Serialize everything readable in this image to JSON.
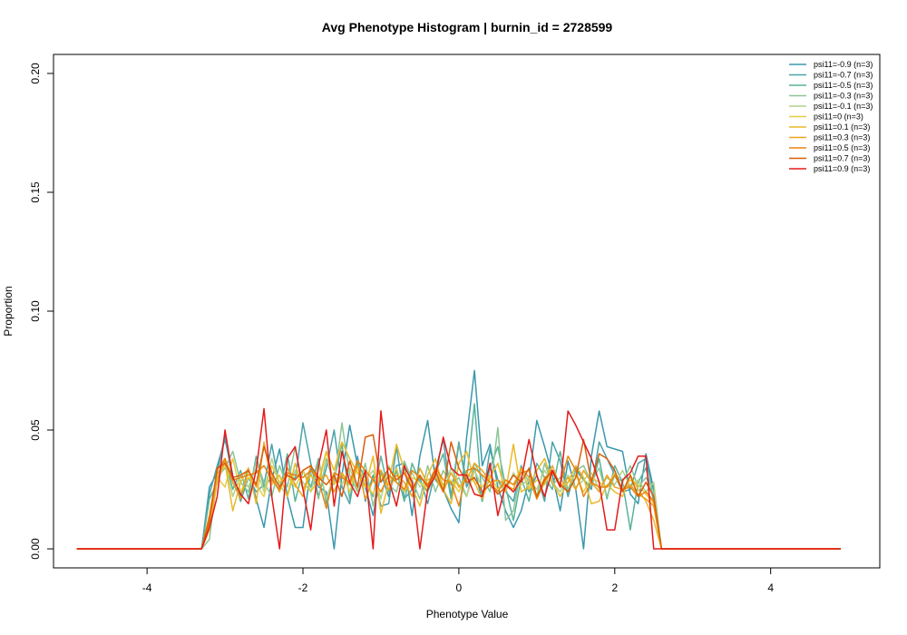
{
  "chart_data": {
    "type": "line",
    "title": "Avg Phenotype Histogram | burnin_id = 2728599",
    "xlabel": "Phenotype Value",
    "ylabel": "Proportion",
    "xlim": [
      -5.2,
      5.4
    ],
    "ylim": [
      -0.008,
      0.208
    ],
    "xticks": [
      -4,
      -2,
      0,
      2,
      4
    ],
    "yticks": [
      0.0,
      0.05,
      0.1,
      0.15,
      0.2
    ],
    "ytick_labels": [
      "0.00",
      "0.05",
      "0.10",
      "0.15",
      "0.20"
    ],
    "grid": false,
    "legend_position": "top-right",
    "x": [
      -4.9,
      -4.8,
      -4.7,
      -4.6,
      -4.5,
      -4.4,
      -4.3,
      -4.2,
      -4.1,
      -4.0,
      -3.9,
      -3.8,
      -3.7,
      -3.6,
      -3.5,
      -3.4,
      -3.3,
      -3.2,
      -3.1,
      -3.0,
      -2.9,
      -2.8,
      -2.7,
      -2.6,
      -2.5,
      -2.4,
      -2.3,
      -2.2,
      -2.1,
      -2.0,
      -1.9,
      -1.8,
      -1.7,
      -1.6,
      -1.5,
      -1.4,
      -1.3,
      -1.2,
      -1.1,
      -1.0,
      -0.9,
      -0.8,
      -0.7,
      -0.6,
      -0.5,
      -0.4,
      -0.3,
      -0.2,
      -0.1,
      0.0,
      0.1,
      0.2,
      0.3,
      0.4,
      0.5,
      0.6,
      0.7,
      0.8,
      0.9,
      1.0,
      1.1,
      1.2,
      1.3,
      1.4,
      1.5,
      1.6,
      1.7,
      1.8,
      1.9,
      2.0,
      2.1,
      2.2,
      2.3,
      2.4,
      2.5,
      2.6,
      2.7,
      2.8,
      2.9,
      3.0,
      3.1,
      3.2,
      3.3,
      3.4,
      3.5,
      3.6,
      3.7,
      3.8,
      3.9,
      4.0,
      4.1,
      4.2,
      4.3,
      4.4,
      4.5,
      4.6,
      4.7,
      4.8,
      4.9
    ],
    "series": [
      {
        "name": "psi11=-0.9 (n=3)",
        "color": "#3a98ad",
        "values": [
          0,
          0,
          0,
          0,
          0,
          0,
          0,
          0,
          0,
          0,
          0,
          0,
          0,
          0,
          0,
          0,
          0,
          0.026,
          0.032,
          0.048,
          0.028,
          0.022,
          0.034,
          0.021,
          0.009,
          0.029,
          0.042,
          0.022,
          0.009,
          0.009,
          0.034,
          0.026,
          0.024,
          0,
          0.031,
          0.052,
          0.035,
          0.026,
          0.014,
          0.032,
          0.022,
          0.035,
          0.036,
          0.014,
          0.039,
          0.054,
          0.029,
          0.025,
          0.017,
          0.011,
          0.047,
          0.075,
          0.035,
          0.044,
          0.026,
          0.016,
          0.009,
          0.016,
          0.029,
          0.054,
          0.043,
          0.031,
          0.016,
          0.037,
          0.025,
          0,
          0.039,
          0.058,
          0.043,
          0.042,
          0.041,
          0.023,
          0.019,
          0.04,
          0.025,
          0,
          0,
          0,
          0,
          0,
          0,
          0,
          0,
          0,
          0,
          0,
          0,
          0,
          0,
          0,
          0,
          0,
          0,
          0,
          0,
          0,
          0,
          0,
          0
        ]
      },
      {
        "name": "psi11=-0.7 (n=3)",
        "color": "#4aa2a8",
        "values": [
          0,
          0,
          0,
          0,
          0,
          0,
          0,
          0,
          0,
          0,
          0,
          0,
          0,
          0,
          0,
          0,
          0,
          0.023,
          0.035,
          0.046,
          0.031,
          0.02,
          0.03,
          0.024,
          0.027,
          0.044,
          0.026,
          0.034,
          0.029,
          0.053,
          0.036,
          0.022,
          0.034,
          0.05,
          0.026,
          0.019,
          0.039,
          0.02,
          0.031,
          0.018,
          0.019,
          0.043,
          0.021,
          0.025,
          0.03,
          0.019,
          0.033,
          0.046,
          0.022,
          0.045,
          0.026,
          0.034,
          0.02,
          0.042,
          0.029,
          0.024,
          0.02,
          0.035,
          0.024,
          0.031,
          0.02,
          0.045,
          0.037,
          0.022,
          0.034,
          0.029,
          0.025,
          0.045,
          0.038,
          0.031,
          0.024,
          0.025,
          0.036,
          0.038,
          0.023,
          0,
          0,
          0,
          0,
          0,
          0,
          0,
          0,
          0,
          0,
          0,
          0,
          0,
          0,
          0,
          0,
          0,
          0,
          0,
          0,
          0,
          0,
          0,
          0
        ]
      },
      {
        "name": "psi11=-0.5 (n=3)",
        "color": "#5ab29a",
        "values": [
          0,
          0,
          0,
          0,
          0,
          0,
          0,
          0,
          0,
          0,
          0,
          0,
          0,
          0,
          0,
          0,
          0,
          0.021,
          0.028,
          0.038,
          0.025,
          0.033,
          0.021,
          0.039,
          0.026,
          0.03,
          0.024,
          0.04,
          0.02,
          0.033,
          0.026,
          0.038,
          0.019,
          0.029,
          0.044,
          0.021,
          0.036,
          0.03,
          0.022,
          0.039,
          0.024,
          0.033,
          0.02,
          0.036,
          0.028,
          0.024,
          0.032,
          0.04,
          0.021,
          0.044,
          0.029,
          0.061,
          0.02,
          0.034,
          0.043,
          0.026,
          0.012,
          0.03,
          0.02,
          0.036,
          0.03,
          0.025,
          0.041,
          0.024,
          0.033,
          0.029,
          0.026,
          0.038,
          0.021,
          0.035,
          0.028,
          0.008,
          0.028,
          0.034,
          0.02,
          0,
          0,
          0,
          0,
          0,
          0,
          0,
          0,
          0,
          0,
          0,
          0,
          0,
          0,
          0,
          0,
          0,
          0,
          0,
          0,
          0,
          0,
          0,
          0
        ]
      },
      {
        "name": "psi11=-0.3 (n=3)",
        "color": "#8cc596",
        "values": [
          0,
          0,
          0,
          0,
          0,
          0,
          0,
          0,
          0,
          0,
          0,
          0,
          0,
          0,
          0,
          0,
          0,
          0.004,
          0.03,
          0.034,
          0.041,
          0.028,
          0.024,
          0.037,
          0.028,
          0.022,
          0.035,
          0.026,
          0.043,
          0.025,
          0.032,
          0.021,
          0.038,
          0.027,
          0.053,
          0.031,
          0.024,
          0.036,
          0.018,
          0.033,
          0.027,
          0.024,
          0.037,
          0.029,
          0.021,
          0.035,
          0.024,
          0.033,
          0.027,
          0.03,
          0.022,
          0.036,
          0.03,
          0.024,
          0.051,
          0.012,
          0.016,
          0.034,
          0.028,
          0.022,
          0.036,
          0.027,
          0.03,
          0.025,
          0.033,
          0.035,
          0.028,
          0.034,
          0.022,
          0.031,
          0.028,
          0.035,
          0.026,
          0.03,
          0.024,
          0,
          0,
          0,
          0,
          0,
          0,
          0,
          0,
          0,
          0,
          0,
          0,
          0,
          0,
          0,
          0,
          0,
          0,
          0,
          0,
          0,
          0,
          0,
          0
        ]
      },
      {
        "name": "psi11=-0.1 (n=3)",
        "color": "#b2d28a",
        "values": [
          0,
          0,
          0,
          0,
          0,
          0,
          0,
          0,
          0,
          0,
          0,
          0,
          0,
          0,
          0,
          0,
          0,
          0.01,
          0.028,
          0.036,
          0.022,
          0.031,
          0.026,
          0.034,
          0.024,
          0.038,
          0.027,
          0.022,
          0.033,
          0.028,
          0.024,
          0.036,
          0.021,
          0.031,
          0.027,
          0.034,
          0.025,
          0.029,
          0.033,
          0.021,
          0.035,
          0.028,
          0.024,
          0.032,
          0.026,
          0.029,
          0.031,
          0.024,
          0.034,
          0.027,
          0.022,
          0.033,
          0.026,
          0.03,
          0.028,
          0.024,
          0.032,
          0.027,
          0.029,
          0.025,
          0.033,
          0.028,
          0.024,
          0.031,
          0.026,
          0.029,
          0.032,
          0.025,
          0.03,
          0.027,
          0.033,
          0.026,
          0.029,
          0.024,
          0.028,
          0,
          0,
          0,
          0,
          0,
          0,
          0,
          0,
          0,
          0,
          0,
          0,
          0,
          0,
          0,
          0,
          0,
          0,
          0,
          0,
          0,
          0,
          0,
          0
        ]
      },
      {
        "name": "psi11=0 (n=3)",
        "color": "#e6cc44",
        "values": [
          0,
          0,
          0,
          0,
          0,
          0,
          0,
          0,
          0,
          0,
          0,
          0,
          0,
          0,
          0,
          0,
          0,
          0.013,
          0.03,
          0.026,
          0.038,
          0.024,
          0.03,
          0.027,
          0.022,
          0.035,
          0.028,
          0.031,
          0.026,
          0.033,
          0.024,
          0.029,
          0.041,
          0.027,
          0.032,
          0.024,
          0.035,
          0.028,
          0.023,
          0.031,
          0.027,
          0.034,
          0.024,
          0.03,
          0.028,
          0.025,
          0.033,
          0.027,
          0.029,
          0.024,
          0.032,
          0.028,
          0.026,
          0.031,
          0.025,
          0.029,
          0.027,
          0.034,
          0.025,
          0.029,
          0.027,
          0.033,
          0.026,
          0.028,
          0.031,
          0.024,
          0.03,
          0.028,
          0.026,
          0.032,
          0.025,
          0.029,
          0.027,
          0.023,
          0.019,
          0,
          0,
          0,
          0,
          0,
          0,
          0,
          0,
          0,
          0,
          0,
          0,
          0,
          0,
          0,
          0,
          0,
          0,
          0,
          0,
          0,
          0,
          0,
          0
        ]
      },
      {
        "name": "psi11=0.1 (n=3)",
        "color": "#e9b92a",
        "values": [
          0,
          0,
          0,
          0,
          0,
          0,
          0,
          0,
          0,
          0,
          0,
          0,
          0,
          0,
          0,
          0,
          0,
          0.008,
          0.029,
          0.036,
          0.016,
          0.028,
          0.034,
          0.019,
          0.045,
          0.027,
          0.031,
          0.022,
          0.036,
          0.025,
          0.031,
          0.027,
          0.041,
          0.033,
          0.045,
          0.038,
          0.032,
          0.026,
          0.039,
          0.015,
          0.028,
          0.044,
          0.033,
          0.026,
          0.018,
          0.031,
          0.038,
          0.025,
          0.019,
          0.036,
          0.041,
          0.028,
          0.021,
          0.03,
          0.036,
          0.024,
          0.044,
          0.024,
          0.026,
          0.033,
          0.038,
          0.028,
          0.022,
          0.028,
          0.035,
          0.03,
          0.019,
          0.02,
          0.027,
          0.024,
          0.022,
          0.031,
          0.025,
          0.02,
          0.012,
          0,
          0,
          0,
          0,
          0,
          0,
          0,
          0,
          0,
          0,
          0,
          0,
          0,
          0,
          0,
          0,
          0,
          0,
          0,
          0,
          0,
          0,
          0,
          0
        ]
      },
      {
        "name": "psi11=0.3 (n=3)",
        "color": "#eda21a",
        "values": [
          0,
          0,
          0,
          0,
          0,
          0,
          0,
          0,
          0,
          0,
          0,
          0,
          0,
          0,
          0,
          0,
          0,
          0.011,
          0.031,
          0.037,
          0.028,
          0.021,
          0.033,
          0.026,
          0.044,
          0.031,
          0.024,
          0.034,
          0.027,
          0.022,
          0.035,
          0.029,
          0.031,
          0.024,
          0.032,
          0.027,
          0.035,
          0.021,
          0.029,
          0.033,
          0.025,
          0.031,
          0.028,
          0.022,
          0.034,
          0.027,
          0.03,
          0.024,
          0.032,
          0.026,
          0.029,
          0.036,
          0.033,
          0.028,
          0.029,
          0.027,
          0.025,
          0.034,
          0.03,
          0.021,
          0.028,
          0.035,
          0.026,
          0.03,
          0.025,
          0.033,
          0.028,
          0.024,
          0.031,
          0.026,
          0.025,
          0.027,
          0.023,
          0.021,
          0.018,
          0,
          0,
          0,
          0,
          0,
          0,
          0,
          0,
          0,
          0,
          0,
          0,
          0,
          0,
          0,
          0,
          0,
          0,
          0,
          0,
          0,
          0,
          0,
          0
        ]
      },
      {
        "name": "psi11=0.5 (n=3)",
        "color": "#e78512",
        "values": [
          0,
          0,
          0,
          0,
          0,
          0,
          0,
          0,
          0,
          0,
          0,
          0,
          0,
          0,
          0,
          0,
          0,
          0.014,
          0.033,
          0.038,
          0.029,
          0.03,
          0.031,
          0.032,
          0.035,
          0.029,
          0.025,
          0.032,
          0.031,
          0.03,
          0.033,
          0.029,
          0.017,
          0.032,
          0.03,
          0.028,
          0.037,
          0.033,
          0.029,
          0.024,
          0.031,
          0.028,
          0.025,
          0.033,
          0.03,
          0.027,
          0.034,
          0.029,
          0.028,
          0.018,
          0.033,
          0.034,
          0.031,
          0.028,
          0.024,
          0.029,
          0.027,
          0.032,
          0.033,
          0.021,
          0.03,
          0.032,
          0.027,
          0.039,
          0.033,
          0.022,
          0.028,
          0.026,
          0.026,
          0.031,
          0.025,
          0.026,
          0.022,
          0.024,
          0.02,
          0,
          0,
          0,
          0,
          0,
          0,
          0,
          0,
          0,
          0,
          0,
          0,
          0,
          0,
          0,
          0,
          0,
          0,
          0,
          0,
          0,
          0,
          0,
          0
        ]
      },
      {
        "name": "psi11=0.7 (n=3)",
        "color": "#d95f0e",
        "values": [
          0,
          0,
          0,
          0,
          0,
          0,
          0,
          0,
          0,
          0,
          0,
          0,
          0,
          0,
          0,
          0,
          0,
          0.012,
          0.034,
          0.036,
          0.03,
          0.031,
          0.033,
          0.027,
          0.043,
          0.032,
          0.026,
          0.031,
          0.029,
          0.033,
          0.035,
          0.03,
          0.027,
          0.031,
          0.022,
          0.037,
          0.026,
          0.047,
          0.048,
          0.028,
          0.034,
          0.029,
          0.032,
          0.025,
          0.031,
          0.026,
          0.033,
          0.024,
          0.045,
          0.034,
          0.028,
          0.03,
          0.024,
          0.027,
          0.023,
          0.026,
          0.031,
          0.028,
          0.034,
          0.022,
          0.029,
          0.033,
          0.027,
          0.024,
          0.03,
          0.046,
          0.028,
          0.04,
          0.038,
          0.033,
          0.024,
          0.031,
          0.022,
          0.028,
          0.022,
          0,
          0,
          0,
          0,
          0,
          0,
          0,
          0,
          0,
          0,
          0,
          0,
          0,
          0,
          0,
          0,
          0,
          0,
          0,
          0,
          0,
          0,
          0,
          0
        ]
      },
      {
        "name": "psi11=0.9 (n=3)",
        "color": "#e41a1c",
        "values": [
          0,
          0,
          0,
          0,
          0,
          0,
          0,
          0,
          0,
          0,
          0,
          0,
          0,
          0,
          0,
          0,
          0,
          0.009,
          0.022,
          0.05,
          0.03,
          0.023,
          0.019,
          0.033,
          0.059,
          0.022,
          0,
          0.038,
          0.043,
          0.025,
          0.008,
          0.035,
          0.05,
          0.018,
          0.041,
          0.028,
          0.022,
          0.033,
          0,
          0.058,
          0.029,
          0.018,
          0.035,
          0.028,
          0,
          0.025,
          0.031,
          0.047,
          0.034,
          0.031,
          0.031,
          0.023,
          0.022,
          0.036,
          0.014,
          0.027,
          0.024,
          0.029,
          0.046,
          0.031,
          0.022,
          0.033,
          0.026,
          0.058,
          0.052,
          0.045,
          0.038,
          0.028,
          0.008,
          0.008,
          0.029,
          0.032,
          0.039,
          0.039,
          0,
          0,
          0,
          0,
          0,
          0,
          0,
          0,
          0,
          0,
          0,
          0,
          0,
          0,
          0,
          0,
          0,
          0,
          0,
          0,
          0,
          0,
          0,
          0,
          0
        ]
      }
    ]
  }
}
